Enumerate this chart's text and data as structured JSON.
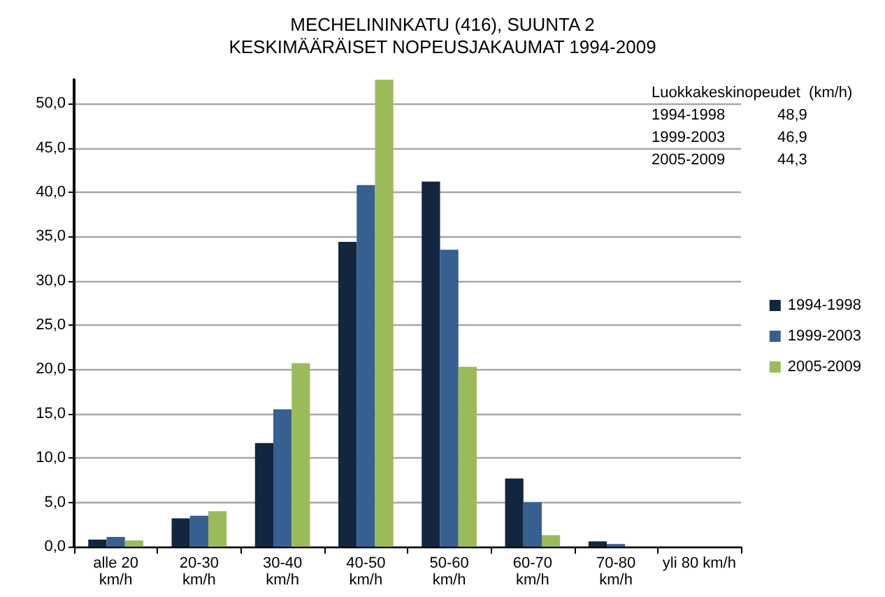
{
  "chart_data": {
    "type": "bar",
    "title": "MECHELININKATU (416), SUUNTA 2",
    "subtitle": "KESKIMÄÄRÄISET NOPEUSJAKAUMAT 1994-2009",
    "categories": [
      "alle 20 km/h",
      "20-30 km/h",
      "30-40 km/h",
      "40-50 km/h",
      "50-60 km/h",
      "60-70 km/h",
      "70-80 km/h",
      "yli 80 km/h"
    ],
    "series": [
      {
        "name": "1994-1998",
        "color": "#13263f",
        "values": [
          0.8,
          3.2,
          11.7,
          34.4,
          41.2,
          7.7,
          0.6,
          0
        ]
      },
      {
        "name": "1999-2003",
        "color": "#366092",
        "values": [
          1.1,
          3.5,
          15.5,
          40.8,
          33.5,
          5.0,
          0.3,
          0
        ]
      },
      {
        "name": "2005-2009",
        "color": "#9bbb59",
        "values": [
          0.7,
          4.0,
          20.7,
          52.7,
          20.3,
          1.3,
          0,
          0
        ]
      }
    ],
    "ylim": [
      0,
      52.7
    ],
    "yticks": [
      {
        "value": 0,
        "label": "0,0"
      },
      {
        "value": 5,
        "label": "5,0"
      },
      {
        "value": 10,
        "label": "10,0"
      },
      {
        "value": 15,
        "label": "15,0"
      },
      {
        "value": 20,
        "label": "20,0"
      },
      {
        "value": 25,
        "label": "25,0"
      },
      {
        "value": 30,
        "label": "30,0"
      },
      {
        "value": 35,
        "label": "35,0"
      },
      {
        "value": 40,
        "label": "40,0"
      },
      {
        "value": 45,
        "label": "45,0"
      },
      {
        "value": 50,
        "label": "50,0"
      }
    ],
    "grid": "y",
    "legend": "right",
    "annotations": [
      "Luokkakeskinopeudet  (km/h)",
      "1994-1998",
      "48,9",
      "1999-2003",
      "46,9",
      "2005-2009",
      "44,3"
    ]
  }
}
